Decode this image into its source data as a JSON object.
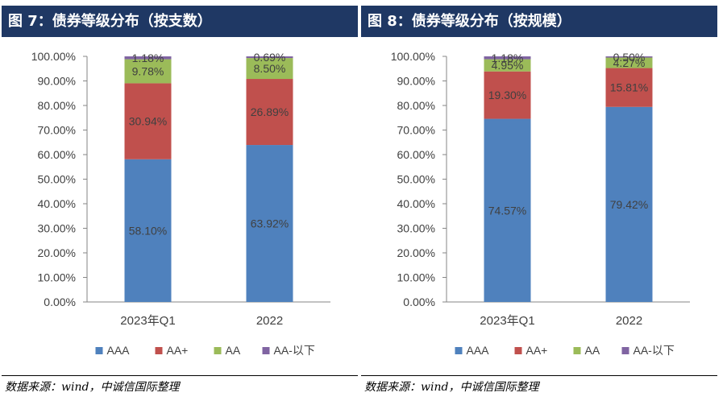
{
  "chart_data": [
    {
      "type": "bar",
      "stacked": true,
      "title": "图 7：债券等级分布（按支数）",
      "categories": [
        "2023年Q1",
        "2022"
      ],
      "series": [
        {
          "name": "AAA",
          "values": [
            58.1,
            63.92
          ],
          "labels": [
            "58.10%",
            "63.92%"
          ],
          "color": "#4f81bd"
        },
        {
          "name": "AA+",
          "values": [
            30.94,
            26.89
          ],
          "labels": [
            "30.94%",
            "26.89%"
          ],
          "color": "#c0504d"
        },
        {
          "name": "AA",
          "values": [
            9.78,
            8.5
          ],
          "labels": [
            "9.78%",
            "8.50%"
          ],
          "color": "#9bbb59"
        },
        {
          "name": "AA-以下",
          "values": [
            1.18,
            0.69
          ],
          "labels": [
            "1.18%",
            "0.69%"
          ],
          "color": "#8064a2"
        }
      ],
      "ylim": [
        0,
        100
      ],
      "yticks": [
        "0.00%",
        "10.00%",
        "20.00%",
        "30.00%",
        "40.00%",
        "50.00%",
        "60.00%",
        "70.00%",
        "80.00%",
        "90.00%",
        "100.00%"
      ],
      "grid": false,
      "legend": "bottom",
      "source": "数据来源：wind，中诚信国际整理"
    },
    {
      "type": "bar",
      "stacked": true,
      "title": "图 8：债券等级分布（按规模）",
      "categories": [
        "2023年Q1",
        "2022"
      ],
      "series": [
        {
          "name": "AAA",
          "values": [
            74.57,
            79.42
          ],
          "labels": [
            "74.57%",
            "79.42%"
          ],
          "color": "#4f81bd"
        },
        {
          "name": "AA+",
          "values": [
            19.3,
            15.81
          ],
          "labels": [
            "19.30%",
            "15.81%"
          ],
          "color": "#c0504d"
        },
        {
          "name": "AA",
          "values": [
            4.95,
            4.27
          ],
          "labels": [
            "4.95%",
            "4.27%"
          ],
          "color": "#9bbb59"
        },
        {
          "name": "AA-以下",
          "values": [
            1.18,
            0.5
          ],
          "labels": [
            "1.18%",
            "0.50%"
          ],
          "color": "#8064a2"
        }
      ],
      "ylim": [
        0,
        100
      ],
      "yticks": [
        "0.00%",
        "10.00%",
        "20.00%",
        "30.00%",
        "40.00%",
        "50.00%",
        "60.00%",
        "70.00%",
        "80.00%",
        "90.00%",
        "100.00%"
      ],
      "grid": false,
      "legend": "bottom",
      "source": "数据来源：wind，中诚信国际整理"
    }
  ]
}
